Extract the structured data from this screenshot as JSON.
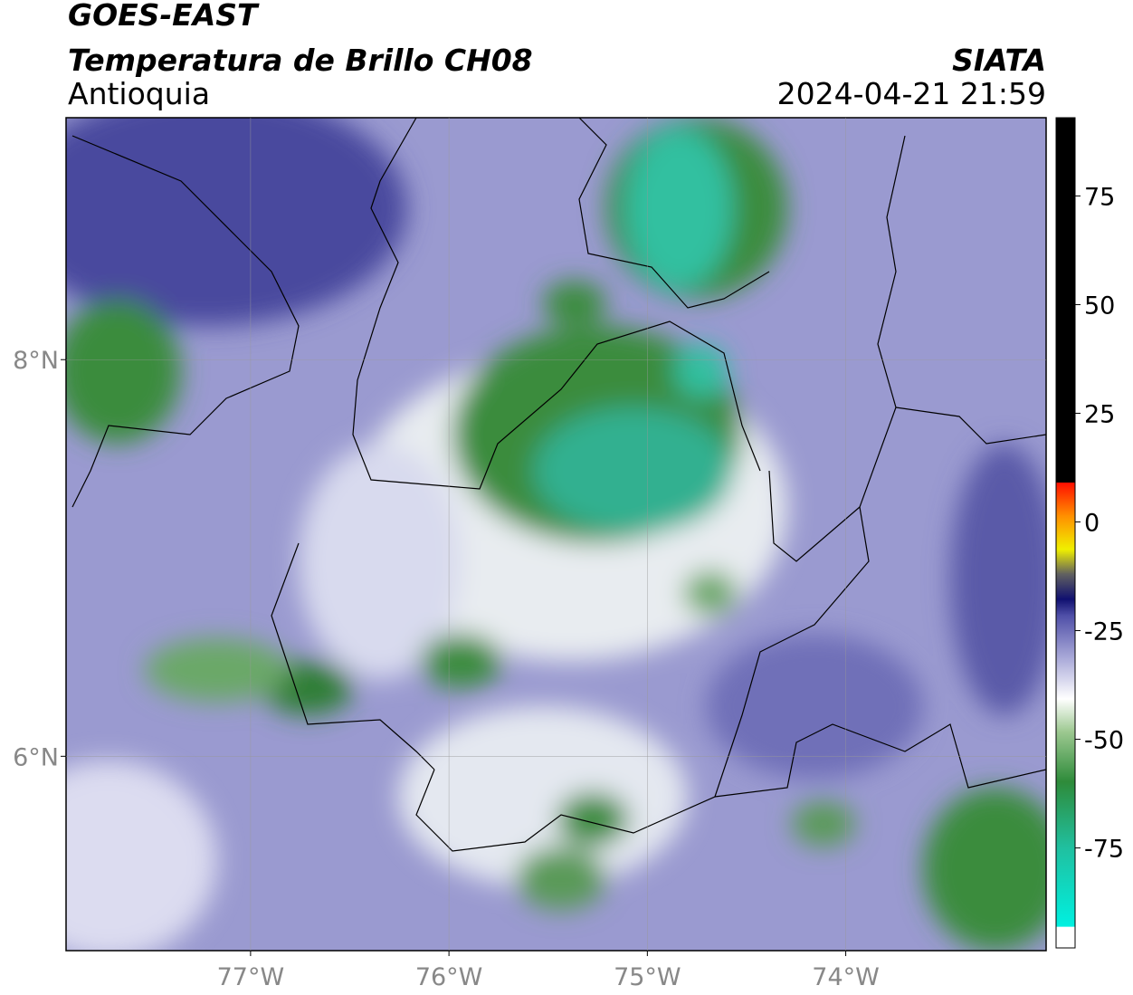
{
  "header": {
    "title": "GOES-EAST",
    "subtitle": "Temperatura de Brillo CH08",
    "region": "Antioquia",
    "source": "SIATA",
    "timestamp": "2024-04-21 21:59"
  },
  "map": {
    "xlim": [
      -77.93,
      -72.99
    ],
    "ylim": [
      5.02,
      9.22
    ],
    "xticks": [
      {
        "value": -77,
        "label": "77°W"
      },
      {
        "value": -76,
        "label": "76°W"
      },
      {
        "value": -75,
        "label": "75°W"
      },
      {
        "value": -74,
        "label": "74°W"
      }
    ],
    "yticks": [
      {
        "value": 6,
        "label": "6°N"
      },
      {
        "value": 8,
        "label": "8°N"
      }
    ]
  },
  "colorbar": {
    "lim": [
      -98,
      93
    ],
    "ticks": [
      -75,
      -50,
      -25,
      0,
      25,
      50,
      75
    ]
  }
}
